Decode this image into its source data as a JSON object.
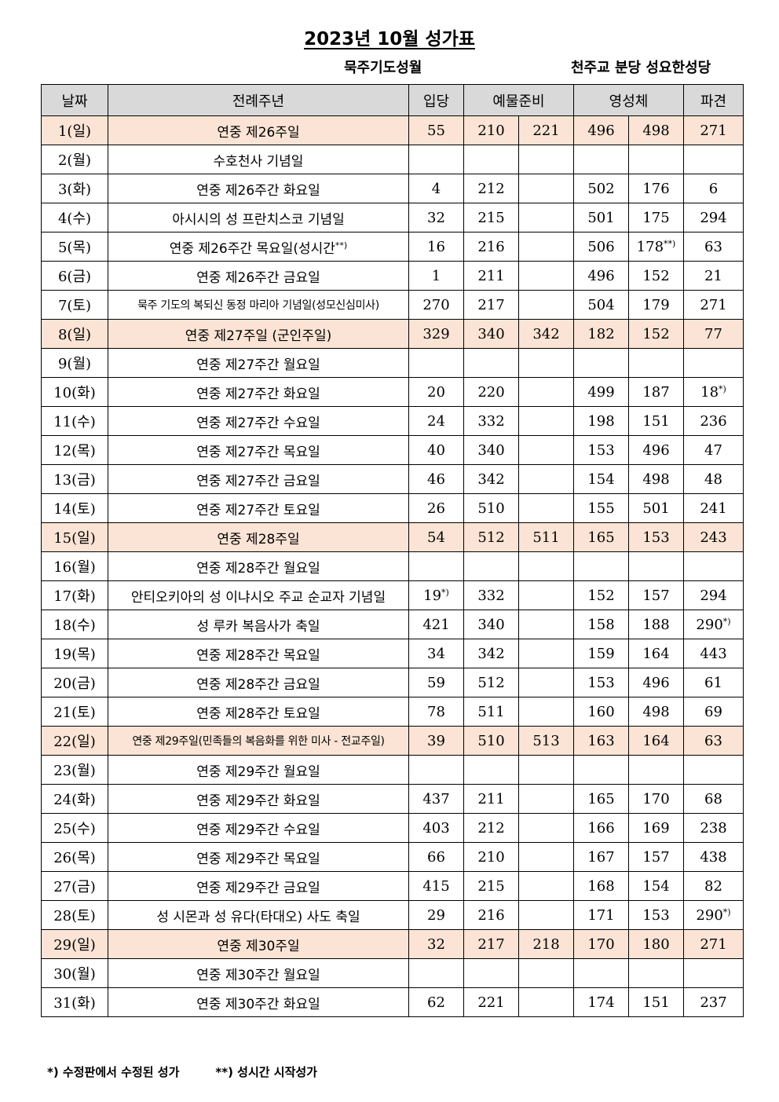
{
  "title": "2023년 10월 성가표",
  "subtitle_left": "묵주기도성월",
  "subtitle_right": "천주교 분당 성요한성당",
  "headers": {
    "date": "날짜",
    "feast": "전례주년",
    "entrance": "입당",
    "offertory": "예물준비",
    "communion": "영성체",
    "dismissal": "파견"
  },
  "rows": [
    {
      "date": "1(일)",
      "feast": "연중 제26주일",
      "entrance": "55",
      "off1": "210",
      "off2": "221",
      "com1": "496",
      "com2": "498",
      "dismissal": "271",
      "sunday": true
    },
    {
      "date": "2(월)",
      "feast": "수호천사 기념일",
      "entrance": "",
      "off1": "",
      "off2": "",
      "com1": "",
      "com2": "",
      "dismissal": "",
      "sunday": false
    },
    {
      "date": "3(화)",
      "feast": "연중 제26주간 화요일",
      "entrance": "4",
      "off1": "212",
      "off2": "",
      "com1": "502",
      "com2": "176",
      "dismissal": "6",
      "sunday": false
    },
    {
      "date": "4(수)",
      "feast": "아시시의 성 프란치스코 기념일",
      "entrance": "32",
      "off1": "215",
      "off2": "",
      "com1": "501",
      "com2": "175",
      "dismissal": "294",
      "sunday": false
    },
    {
      "date": "5(목)",
      "feast": "연중 제26주간 목요일(성시간**)",
      "entrance": "16",
      "off1": "216",
      "off2": "",
      "com1": "506",
      "com2": "178**)",
      "dismissal": "63",
      "sunday": false
    },
    {
      "date": "6(금)",
      "feast": "연중 제26주간 금요일",
      "entrance": "1",
      "off1": "211",
      "off2": "",
      "com1": "496",
      "com2": "152",
      "dismissal": "21",
      "sunday": false
    },
    {
      "date": "7(토)",
      "feast": "묵주 기도의 복되신 동정 마리아 기념일(성모신심미사)",
      "entrance": "270",
      "off1": "217",
      "off2": "",
      "com1": "504",
      "com2": "179",
      "dismissal": "271",
      "sunday": false,
      "long": true
    },
    {
      "date": "8(일)",
      "feast": "연중 제27주일 (군인주일)",
      "entrance": "329",
      "off1": "340",
      "off2": "342",
      "com1": "182",
      "com2": "152",
      "dismissal": "77",
      "sunday": true
    },
    {
      "date": "9(월)",
      "feast": "연중 제27주간 월요일",
      "entrance": "",
      "off1": "",
      "off2": "",
      "com1": "",
      "com2": "",
      "dismissal": "",
      "sunday": false
    },
    {
      "date": "10(화)",
      "feast": "연중 제27주간 화요일",
      "entrance": "20",
      "off1": "220",
      "off2": "",
      "com1": "499",
      "com2": "187",
      "dismissal": "18*)",
      "sunday": false
    },
    {
      "date": "11(수)",
      "feast": "연중 제27주간 수요일",
      "entrance": "24",
      "off1": "332",
      "off2": "",
      "com1": "198",
      "com2": "151",
      "dismissal": "236",
      "sunday": false
    },
    {
      "date": "12(목)",
      "feast": "연중 제27주간 목요일",
      "entrance": "40",
      "off1": "340",
      "off2": "",
      "com1": "153",
      "com2": "496",
      "dismissal": "47",
      "sunday": false
    },
    {
      "date": "13(금)",
      "feast": "연중 제27주간 금요일",
      "entrance": "46",
      "off1": "342",
      "off2": "",
      "com1": "154",
      "com2": "498",
      "dismissal": "48",
      "sunday": false
    },
    {
      "date": "14(토)",
      "feast": "연중 제27주간 토요일",
      "entrance": "26",
      "off1": "510",
      "off2": "",
      "com1": "155",
      "com2": "501",
      "dismissal": "241",
      "sunday": false
    },
    {
      "date": "15(일)",
      "feast": "연중 제28주일",
      "entrance": "54",
      "off1": "512",
      "off2": "511",
      "com1": "165",
      "com2": "153",
      "dismissal": "243",
      "sunday": true
    },
    {
      "date": "16(월)",
      "feast": "연중 제28주간 월요일",
      "entrance": "",
      "off1": "",
      "off2": "",
      "com1": "",
      "com2": "",
      "dismissal": "",
      "sunday": false
    },
    {
      "date": "17(화)",
      "feast": "안티오키아의 성 이냐시오 주교 순교자 기념일",
      "entrance": "19*)",
      "off1": "332",
      "off2": "",
      "com1": "152",
      "com2": "157",
      "dismissal": "294",
      "sunday": false
    },
    {
      "date": "18(수)",
      "feast": "성 루카 복음사가 축일",
      "entrance": "421",
      "off1": "340",
      "off2": "",
      "com1": "158",
      "com2": "188",
      "dismissal": "290*)",
      "sunday": false
    },
    {
      "date": "19(목)",
      "feast": "연중 제28주간 목요일",
      "entrance": "34",
      "off1": "342",
      "off2": "",
      "com1": "159",
      "com2": "164",
      "dismissal": "443",
      "sunday": false
    },
    {
      "date": "20(금)",
      "feast": "연중 제28주간 금요일",
      "entrance": "59",
      "off1": "512",
      "off2": "",
      "com1": "153",
      "com2": "496",
      "dismissal": "61",
      "sunday": false
    },
    {
      "date": "21(토)",
      "feast": "연중 제28주간 토요일",
      "entrance": "78",
      "off1": "511",
      "off2": "",
      "com1": "160",
      "com2": "498",
      "dismissal": "69",
      "sunday": false
    },
    {
      "date": "22(일)",
      "feast": "연중 제29주일(민족들의 복음화를 위한 미사 - 전교주일)",
      "entrance": "39",
      "off1": "510",
      "off2": "513",
      "com1": "163",
      "com2": "164",
      "dismissal": "63",
      "sunday": true,
      "long": true
    },
    {
      "date": "23(월)",
      "feast": "연중 제29주간 월요일",
      "entrance": "",
      "off1": "",
      "off2": "",
      "com1": "",
      "com2": "",
      "dismissal": "",
      "sunday": false
    },
    {
      "date": "24(화)",
      "feast": "연중 제29주간 화요일",
      "entrance": "437",
      "off1": "211",
      "off2": "",
      "com1": "165",
      "com2": "170",
      "dismissal": "68",
      "sunday": false
    },
    {
      "date": "25(수)",
      "feast": "연중 제29주간 수요일",
      "entrance": "403",
      "off1": "212",
      "off2": "",
      "com1": "166",
      "com2": "169",
      "dismissal": "238",
      "sunday": false
    },
    {
      "date": "26(목)",
      "feast": "연중 제29주간 목요일",
      "entrance": "66",
      "off1": "210",
      "off2": "",
      "com1": "167",
      "com2": "157",
      "dismissal": "438",
      "sunday": false
    },
    {
      "date": "27(금)",
      "feast": "연중 제29주간 금요일",
      "entrance": "415",
      "off1": "215",
      "off2": "",
      "com1": "168",
      "com2": "154",
      "dismissal": "82",
      "sunday": false
    },
    {
      "date": "28(토)",
      "feast": "성 시몬과 성 유다(타대오) 사도 축일",
      "entrance": "29",
      "off1": "216",
      "off2": "",
      "com1": "171",
      "com2": "153",
      "dismissal": "290*)",
      "sunday": false
    },
    {
      "date": "29(일)",
      "feast": "연중 제30주일",
      "entrance": "32",
      "off1": "217",
      "off2": "218",
      "com1": "170",
      "com2": "180",
      "dismissal": "271",
      "sunday": true
    },
    {
      "date": "30(월)",
      "feast": "연중 제30주간 월요일",
      "entrance": "",
      "off1": "",
      "off2": "",
      "com1": "",
      "com2": "",
      "dismissal": "",
      "sunday": false
    },
    {
      "date": "31(화)",
      "feast": "연중 제30주간 화요일",
      "entrance": "62",
      "off1": "221",
      "off2": "",
      "com1": "174",
      "com2": "151",
      "dismissal": "237",
      "sunday": false
    }
  ],
  "footnote_1": "*) 수정판에서 수정된 성가",
  "footnote_2": "**) 성시간 시작성가"
}
